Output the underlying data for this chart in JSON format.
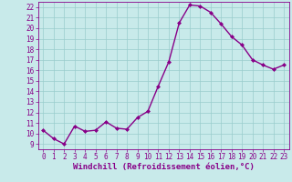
{
  "x": [
    0,
    1,
    2,
    3,
    4,
    5,
    6,
    7,
    8,
    9,
    10,
    11,
    12,
    13,
    14,
    15,
    16,
    17,
    18,
    19,
    20,
    21,
    22,
    23
  ],
  "y": [
    10.3,
    9.5,
    9.0,
    10.7,
    10.2,
    10.3,
    11.1,
    10.5,
    10.4,
    11.5,
    12.1,
    14.5,
    16.8,
    20.5,
    22.2,
    22.1,
    21.5,
    20.4,
    19.2,
    18.4,
    17.0,
    16.5,
    16.1,
    16.5
  ],
  "line_color": "#880088",
  "marker": "D",
  "marker_size": 2.0,
  "linewidth": 1.0,
  "bg_color": "#c8eaea",
  "grid_color": "#99cccc",
  "xlabel": "Windchill (Refroidissement éolien,°C)",
  "xlabel_fontsize": 6.5,
  "tick_fontsize": 5.5,
  "xlim": [
    -0.5,
    23.5
  ],
  "ylim": [
    8.5,
    22.5
  ],
  "yticks": [
    9,
    10,
    11,
    12,
    13,
    14,
    15,
    16,
    17,
    18,
    19,
    20,
    21,
    22
  ],
  "xticks": [
    0,
    1,
    2,
    3,
    4,
    5,
    6,
    7,
    8,
    9,
    10,
    11,
    12,
    13,
    14,
    15,
    16,
    17,
    18,
    19,
    20,
    21,
    22,
    23
  ]
}
